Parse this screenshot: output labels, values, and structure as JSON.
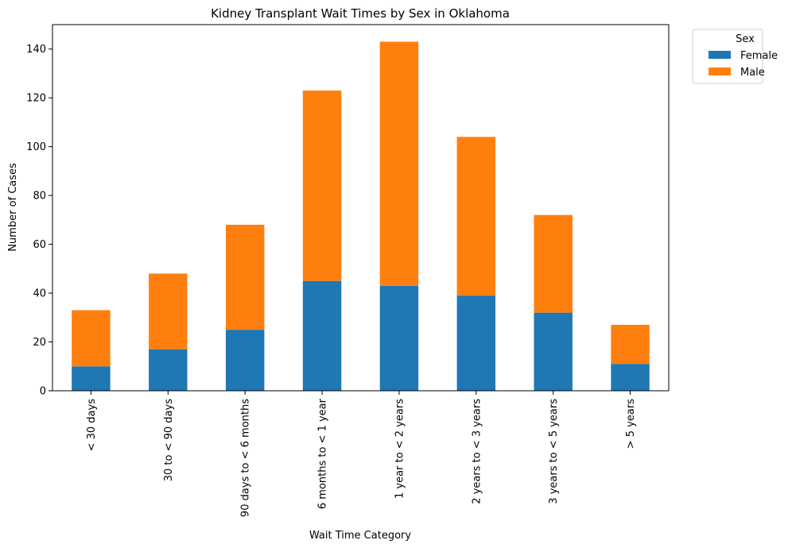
{
  "chart_data": {
    "type": "bar",
    "stacked": true,
    "title": "Kidney Transplant Wait Times by Sex in Oklahoma",
    "xlabel": "Wait Time Category",
    "ylabel": "Number of Cases",
    "categories": [
      "< 30 days",
      "30 to < 90 days",
      "90 days to < 6 months",
      "6 months to < 1 year",
      "1 year to < 2 years",
      "2 years to < 3 years",
      "3 years to < 5 years",
      "> 5 years"
    ],
    "series": [
      {
        "name": "Female",
        "color": "#1f77b4",
        "values": [
          10,
          17,
          25,
          45,
          43,
          39,
          32,
          11
        ]
      },
      {
        "name": "Male",
        "color": "#ff7f0e",
        "values": [
          23,
          31,
          43,
          78,
          100,
          65,
          40,
          16
        ]
      }
    ],
    "ylim": [
      0,
      150
    ],
    "yticks": [
      0,
      20,
      40,
      60,
      80,
      100,
      120,
      140
    ],
    "legend": {
      "title": "Sex",
      "placement": "outside-top-right"
    },
    "grid": false
  }
}
